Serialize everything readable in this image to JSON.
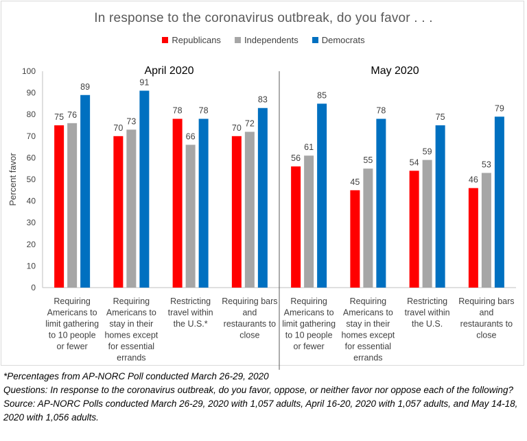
{
  "chart_data": {
    "type": "bar",
    "title": "In response to the coronavirus outbreak, do you favor . . .",
    "ylabel": "Percent favor",
    "ylim": [
      0,
      100
    ],
    "yticks": [
      0,
      10,
      20,
      30,
      40,
      50,
      60,
      70,
      80,
      90,
      100
    ],
    "grid": false,
    "legend_position": "top",
    "panels": [
      "April 2020",
      "May 2020"
    ],
    "categories": [
      "Requiring Americans to limit gathering to 10 people or fewer",
      "Requiring Americans to stay in their homes except for essential errands",
      "Restricting travel within the U.S.*",
      "Requiring bars and restaurants to close",
      "Requiring Americans to limit gathering to 10 people or fewer",
      "Requiring Americans to stay in their homes except for essential errands",
      "Restricting travel within the U.S.",
      "Requiring bars and restaurants to close"
    ],
    "category_lines": [
      [
        "Requiring",
        "Americans to",
        "limit gathering",
        "to 10 people",
        "or fewer"
      ],
      [
        "Requiring",
        "Americans to",
        "stay in their",
        "homes except",
        "for essential",
        "errands"
      ],
      [
        "Restricting",
        "travel within",
        "the U.S.*"
      ],
      [
        "Requiring bars",
        "and",
        "restaurants to",
        "close"
      ],
      [
        "Requiring",
        "Americans to",
        "limit gathering",
        "to 10 people",
        "or fewer"
      ],
      [
        "Requiring",
        "Americans to",
        "stay in their",
        "homes except",
        "for essential",
        "errands"
      ],
      [
        "Restricting",
        "travel within",
        "the U.S."
      ],
      [
        "Requiring bars",
        "and",
        "restaurants to",
        "close"
      ]
    ],
    "series": [
      {
        "name": "Republicans",
        "color": "#ff0000",
        "values": [
          75,
          70,
          78,
          70,
          56,
          45,
          54,
          46
        ]
      },
      {
        "name": "Independents",
        "color": "#a6a6a6",
        "values": [
          76,
          73,
          66,
          72,
          61,
          55,
          59,
          53
        ]
      },
      {
        "name": "Democrats",
        "color": "#0070c0",
        "values": [
          89,
          91,
          78,
          83,
          85,
          78,
          75,
          79
        ]
      }
    ]
  },
  "footnotes": {
    "note": "*Percentages from AP-NORC Poll conducted March 26-29, 2020",
    "questions": "Questions: In response to the coronavirus outbreak, do you favor, oppose, or neither favor nor oppose each of the following?",
    "source": "Source: AP-NORC Polls conducted March 26-29, 2020 with 1,057 adults, April 16-20, 2020 with 1,057 adults, and May 14-18, 2020 with 1,056 adults."
  }
}
